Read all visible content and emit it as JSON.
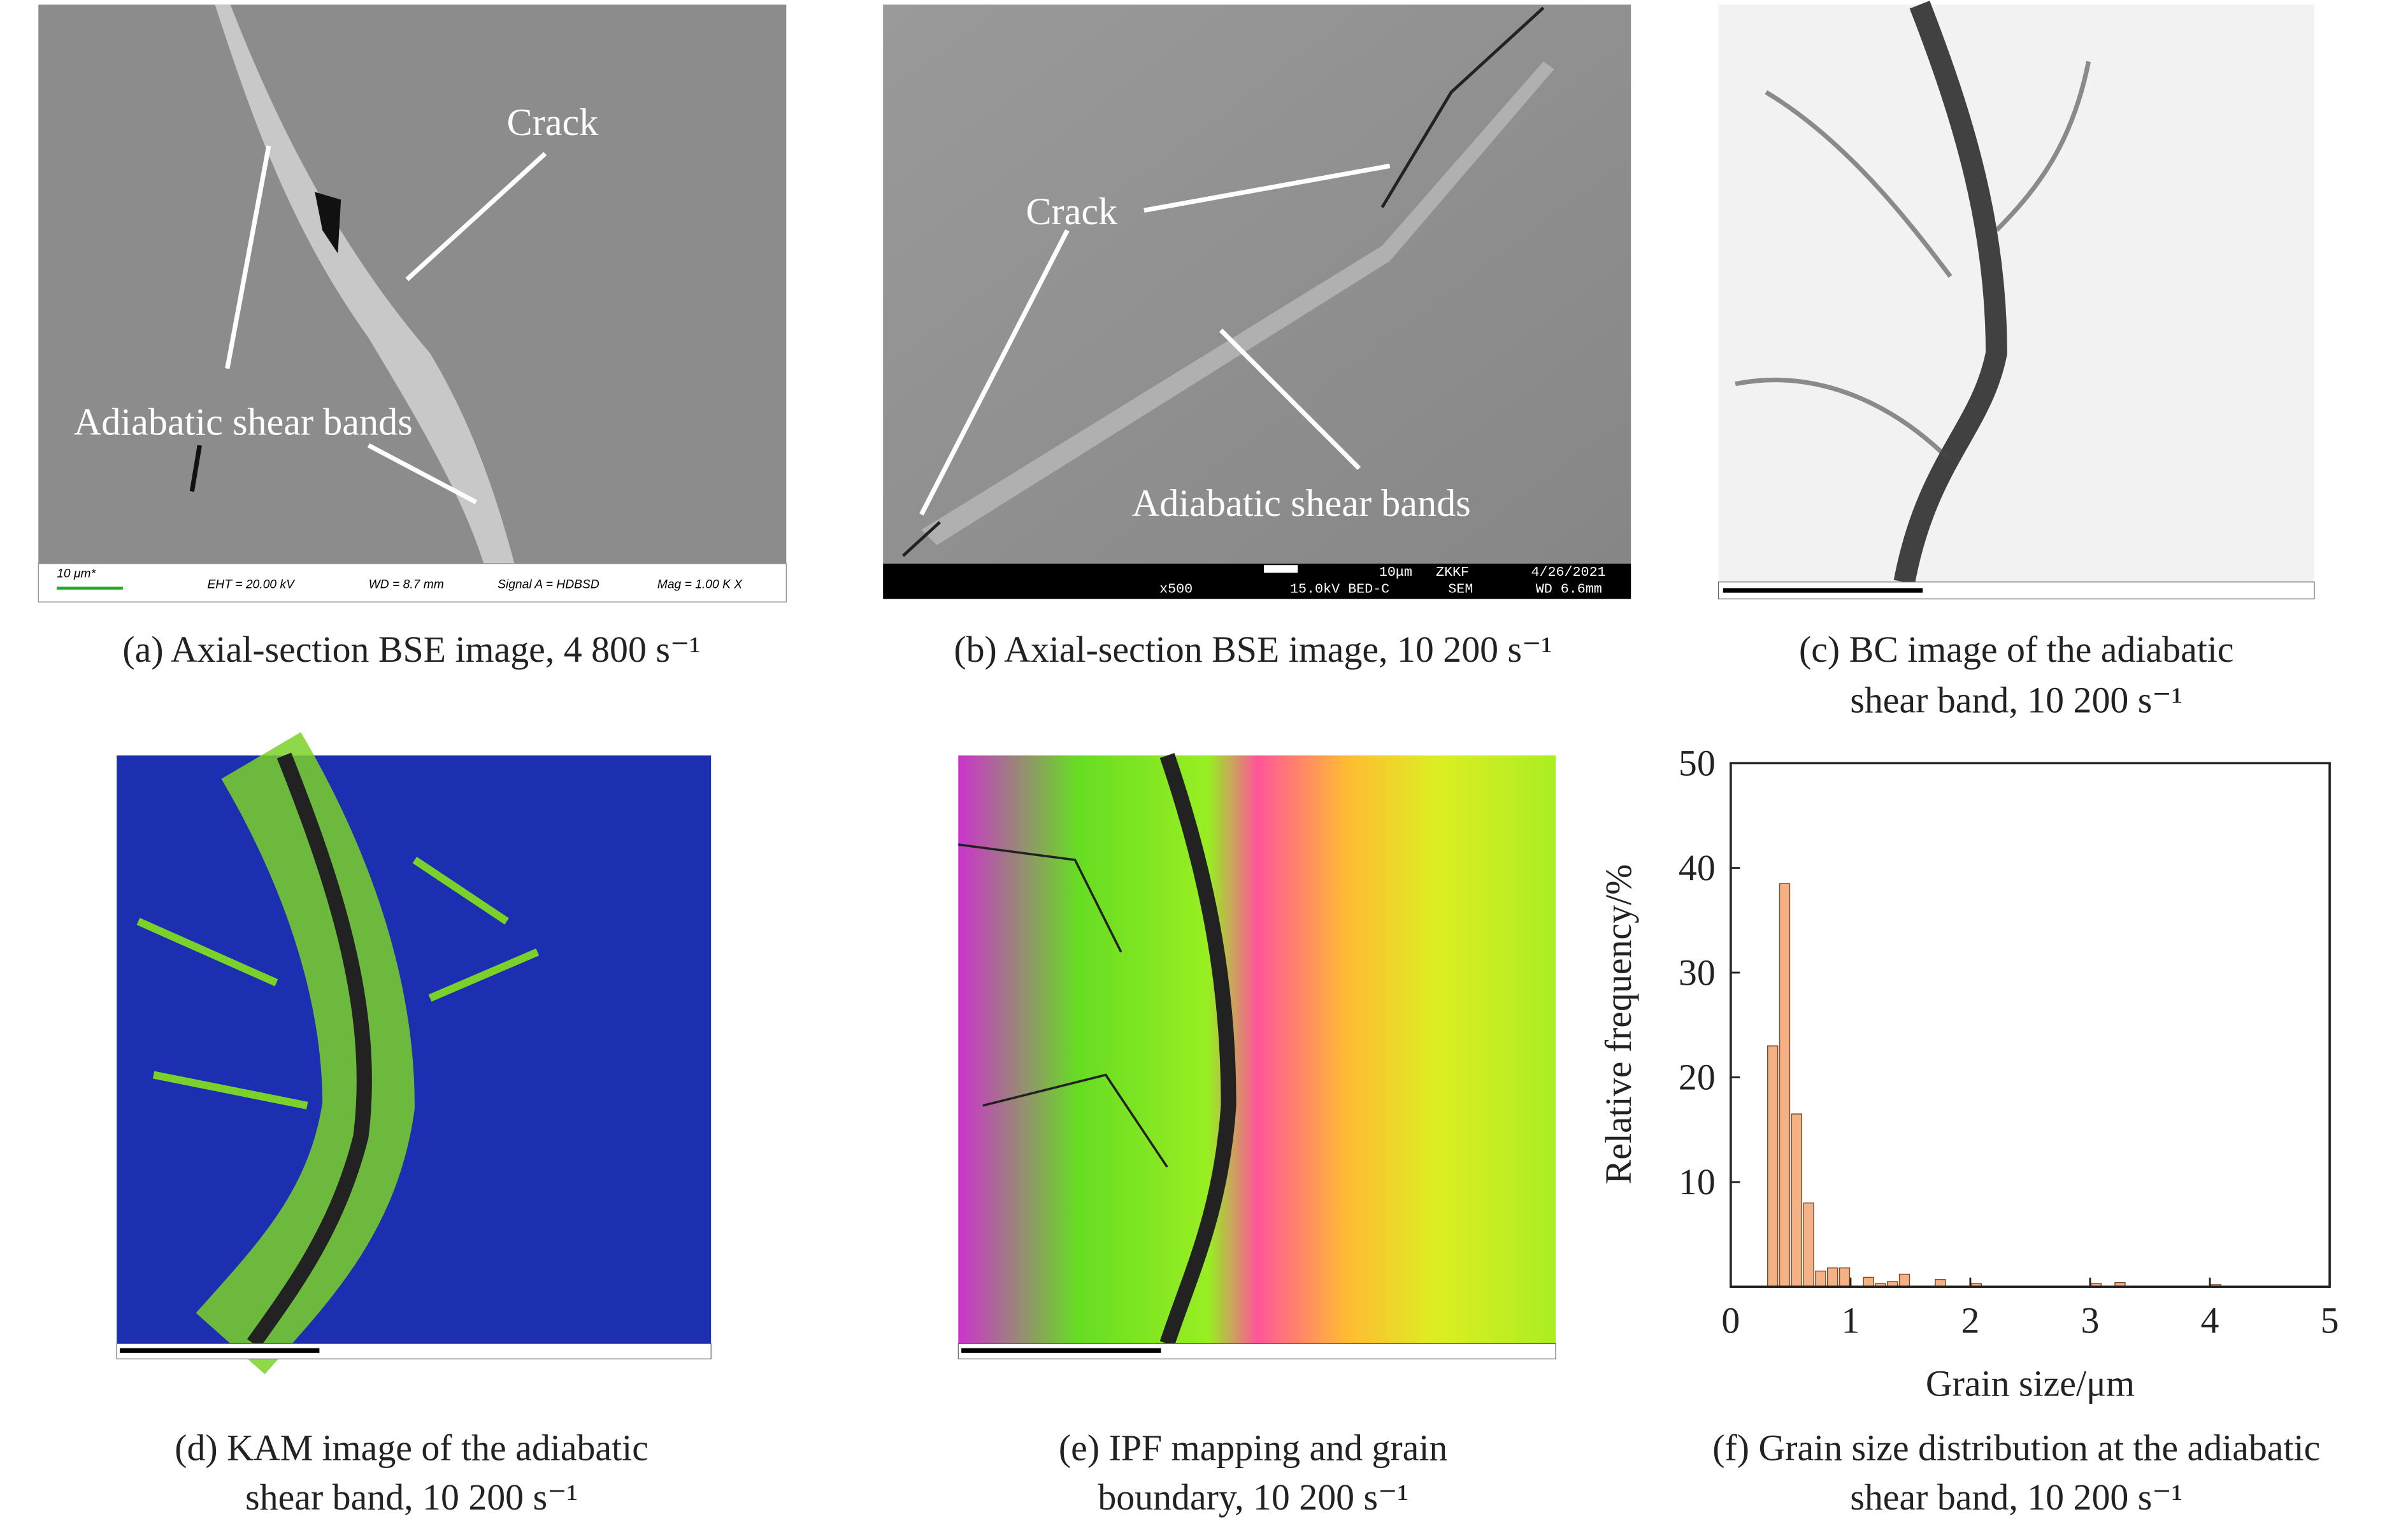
{
  "panels": [
    {
      "caption": [
        "(a) Axial-section BSE image, 4 800 s⁻¹"
      ],
      "annotations": [
        "Crack",
        "Adiabatic shear bands"
      ],
      "info": [
        "10 μm*",
        "EHT = 20.00 kV",
        "WD =  8.7 mm",
        "Signal A = HDBSD",
        "Mag =   1.00 K X"
      ]
    },
    {
      "caption": [
        "(b) Axial-section BSE image, 10 200 s⁻¹"
      ],
      "annotations": [
        "Crack",
        "Adiabatic shear bands"
      ],
      "info": [
        "10μm",
        "ZKKF",
        "4/26/2021",
        "x500",
        "15.0kV BED-C",
        "SEM",
        "WD 6.6mm"
      ]
    },
    {
      "caption": [
        "(c) BC image of the adiabatic",
        "shear band, 10 200 s⁻¹"
      ]
    },
    {
      "caption": [
        "(d) KAM image of the adiabatic",
        "shear band, 10 200 s⁻¹"
      ]
    },
    {
      "caption": [
        "(e) IPF mapping and grain",
        "boundary, 10 200 s⁻¹"
      ]
    },
    {
      "caption": [
        "(f) Grain size distribution at the adiabatic",
        "shear band, 10 200 s⁻¹"
      ]
    }
  ],
  "chart_data": {
    "type": "histogram",
    "x_label": "Grain size/μm",
    "y_label": "Relative frequency/%",
    "bins": [
      0.3,
      0.4,
      0.5,
      0.6,
      0.7,
      0.8,
      0.9,
      1.0,
      1.1,
      1.2,
      1.3,
      1.4,
      1.5,
      1.6,
      1.7,
      1.8,
      1.9,
      2.0,
      2.1,
      2.2,
      2.3,
      2.4,
      2.5,
      2.6,
      2.7,
      2.8,
      2.9,
      3.0,
      3.1,
      3.2,
      3.3,
      3.4,
      3.5,
      3.6,
      3.7,
      3.8,
      3.9,
      4.0,
      4.1
    ],
    "values": [
      23,
      38.5,
      16.5,
      8,
      1.5,
      1.8,
      1.8,
      0,
      0.9,
      0.3,
      0.5,
      1.2,
      0,
      0,
      0.7,
      0,
      0,
      0.3,
      0,
      0,
      0,
      0,
      0,
      0,
      0,
      0,
      0,
      0.3,
      0,
      0.4,
      0,
      0,
      0,
      0,
      0,
      0,
      0,
      0.2
    ],
    "color": "#f4b183",
    "xlim": [
      0,
      5
    ],
    "ylim": [
      0,
      50
    ],
    "xticks": [
      0,
      1,
      2,
      3,
      4,
      5
    ],
    "yticks": [
      10,
      20,
      30,
      40,
      50
    ]
  }
}
